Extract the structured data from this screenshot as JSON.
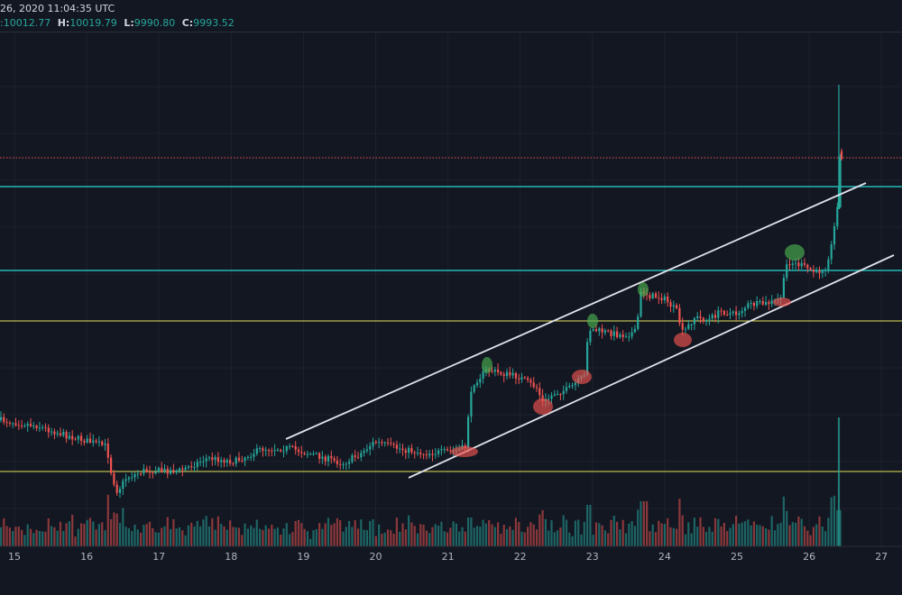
{
  "header": {
    "datetime": "26, 2020 11:04:35 UTC",
    "ohlc": [
      {
        "key": "",
        "value": ":10012.77"
      },
      {
        "key": "H:",
        "value": "10019.79"
      },
      {
        "key": "L:",
        "value": "9990.80"
      },
      {
        "key": "C:",
        "value": "9993.52"
      }
    ]
  },
  "chart_data": {
    "type": "candlestick",
    "x_ticks": [
      "15",
      "16",
      "17",
      "18",
      "19",
      "20",
      "21",
      "22",
      "23",
      "24",
      "25",
      "26",
      "27"
    ],
    "colors": {
      "up": "#26a69a",
      "down": "#ef5350",
      "background": "#131722",
      "grid": "#1e222d",
      "resistance": "#22b8b8",
      "support": "#e6e25a",
      "channel": "#e0e3eb",
      "dotted": "#ef5350"
    }
  }
}
